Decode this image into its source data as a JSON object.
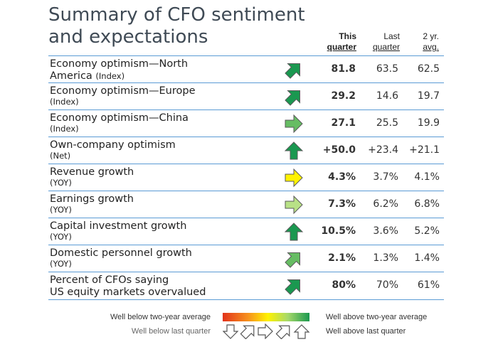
{
  "title_line1": "Summary of CFO sentiment",
  "title_line2": "and expectations",
  "columns": {
    "this": [
      "This",
      "quarter"
    ],
    "last": [
      "Last",
      "quarter"
    ],
    "avg": [
      "2 yr.",
      "avg."
    ]
  },
  "rows": [
    {
      "label": "Economy optimism—North",
      "label2": "America",
      "sub": "(Index)",
      "arrow": "arrow-up-right-icon",
      "color": "#1a9850",
      "this": "81.8",
      "last": "63.5",
      "avg": "62.5"
    },
    {
      "label": "Economy optimism—Europe",
      "label2": "",
      "sub": "(Index)",
      "arrow": "arrow-up-right-icon",
      "color": "#1a9850",
      "this": "29.2",
      "last": "14.6",
      "avg": "19.7"
    },
    {
      "label": "Economy optimism—China",
      "label2": "",
      "sub": "(Index)",
      "arrow": "arrow-right-icon",
      "color": "#66bd63",
      "this": "27.1",
      "last": "25.5",
      "avg": "19.9"
    },
    {
      "label": "Own-company optimism",
      "label2": "",
      "sub": "(Net)",
      "arrow": "arrow-up-icon",
      "color": "#1a9850",
      "this": "+50.0",
      "last": "+23.4",
      "avg": "+21.1"
    },
    {
      "label": "Revenue growth",
      "label2": "",
      "sub": "(YOY)",
      "arrow": "arrow-right-icon",
      "color": "#fff200",
      "this": "4.3%",
      "last": "3.7%",
      "avg": "4.1%"
    },
    {
      "label": "Earnings growth",
      "label2": "",
      "sub": "(YOY)",
      "arrow": "arrow-right-icon",
      "color": "#b8e186",
      "this": "7.3%",
      "last": "6.2%",
      "avg": "6.8%"
    },
    {
      "label": "Capital investment growth",
      "label2": "",
      "sub": "(YOY)",
      "arrow": "arrow-up-icon",
      "color": "#1a9850",
      "this": "10.5%",
      "last": "3.6%",
      "avg": "5.2%"
    },
    {
      "label": "Domestic personnel growth",
      "label2": "",
      "sub": "(YOY)",
      "arrow": "arrow-up-right-icon",
      "color": "#66bd63",
      "this": "2.1%",
      "last": "1.3%",
      "avg": "1.4%"
    },
    {
      "label": "Percent of CFOs saying",
      "label2": "US equity markets overvalued",
      "sub": "",
      "arrow": "arrow-up-right-icon",
      "color": "#1a9850",
      "this": "80%",
      "last": "70%",
      "avg": "61%"
    }
  ],
  "legend": {
    "below_avg": "Well below two-year average",
    "above_avg": "Well above two-year average",
    "below_last": "Well below last quarter",
    "above_last": "Well above last quarter",
    "gradient_colors": [
      "#e2331b",
      "#f7941d",
      "#fff200",
      "#a6d96a",
      "#1a9850"
    ]
  }
}
